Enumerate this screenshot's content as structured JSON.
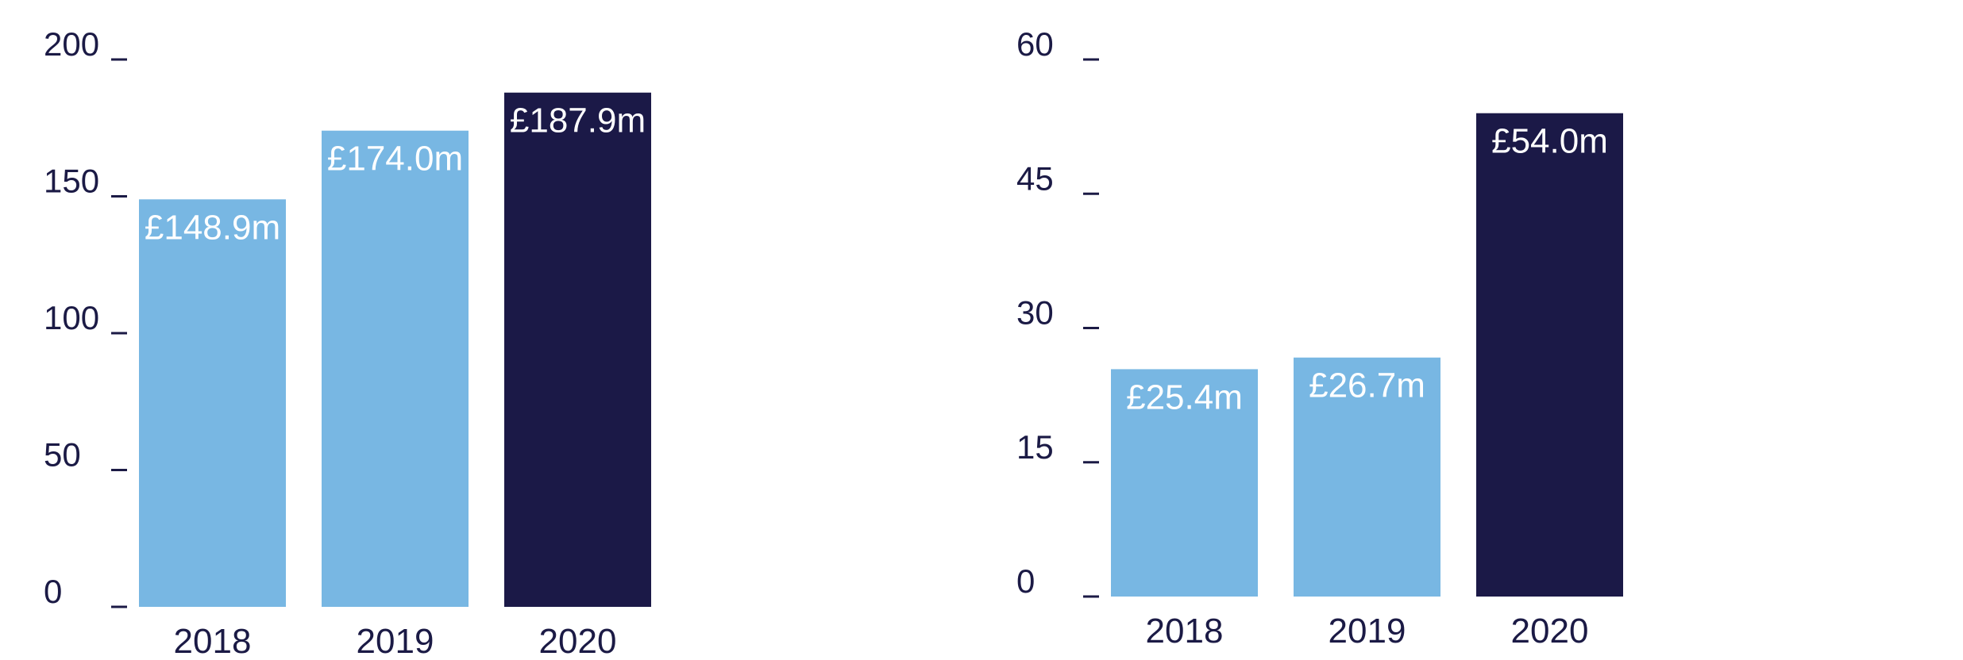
{
  "colors": {
    "prior_year_bar": "#78b7e3",
    "current_year_bar": "#1b1947",
    "axis_text": "#1b1a45",
    "bar_label_text": "#ffffff"
  },
  "chart_data": [
    {
      "type": "bar",
      "categories": [
        "2018",
        "2019",
        "2020"
      ],
      "values": [
        148.9,
        174.0,
        187.9
      ],
      "value_labels": [
        "£148.9m",
        "£174.0m",
        "£187.9m"
      ],
      "yticks": [
        0,
        50,
        100,
        150,
        200
      ],
      "ytick_labels": [
        "0",
        "50",
        "100",
        "150",
        "200"
      ],
      "ylim": [
        0,
        200
      ],
      "highlight_category": "2020",
      "grid": false
    },
    {
      "type": "bar",
      "categories": [
        "2018",
        "2019",
        "2020"
      ],
      "values": [
        25.4,
        26.7,
        54.0
      ],
      "value_labels": [
        "£25.4m",
        "£26.7m",
        "£54.0m"
      ],
      "yticks": [
        0,
        15,
        30,
        45,
        60
      ],
      "ytick_labels": [
        "0",
        "15",
        "30",
        "45",
        "60"
      ],
      "ylim": [
        0,
        60
      ],
      "highlight_category": "2020",
      "grid": false
    }
  ]
}
